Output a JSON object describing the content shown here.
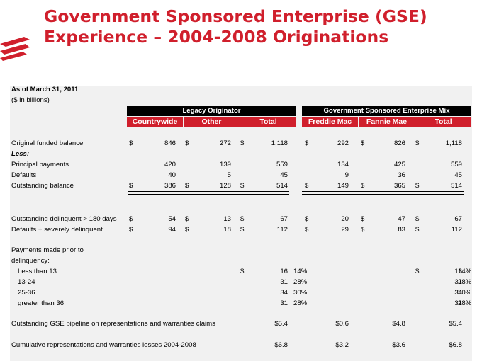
{
  "title": {
    "line1": "Government Sponsored Enterprise (GSE)",
    "line2": "Experience – 2004-2008 Originations"
  },
  "colors": {
    "title": "#d01f2c",
    "header_red": "#d01f2c",
    "panel": "#f1f1f1"
  },
  "logo": "bank-flag-logo",
  "meta": {
    "as_of": "As of March 31, 2011",
    "units": "($ in billions)"
  },
  "groups": {
    "legacy": "Legacy Originator",
    "gse": "Government Sponsored Enterprise Mix"
  },
  "columns": {
    "countrywide": "Countrywide",
    "other": "Other",
    "total1": "Total",
    "freddie": "Freddie Mac",
    "fannie": "Fannie Mae",
    "total2": "Total"
  },
  "rows": {
    "orig": {
      "label": "Original funded balance",
      "countrywide": "846",
      "other": "272",
      "total1": "1,118",
      "freddie": "292",
      "fannie": "826",
      "total2": "1,118"
    },
    "less": {
      "label": "Less:"
    },
    "principal": {
      "label": "Principal payments",
      "countrywide": "420",
      "other": "139",
      "total1": "559",
      "freddie": "134",
      "fannie": "425",
      "total2": "559"
    },
    "defaults": {
      "label": "Defaults",
      "countrywide": "40",
      "other": "5",
      "total1": "45",
      "freddie": "9",
      "fannie": "36",
      "total2": "45"
    },
    "outstanding": {
      "label": "Outstanding balance",
      "countrywide": "386",
      "other": "128",
      "total1": "514",
      "freddie": "149",
      "fannie": "365",
      "total2": "514"
    },
    "delinq": {
      "label": "Outstanding delinquent > 180 days",
      "countrywide": "54",
      "other": "13",
      "total1": "67",
      "freddie": "20",
      "fannie": "47",
      "total2": "67"
    },
    "severe": {
      "label": "Defaults + severely delinquent",
      "countrywide": "94",
      "other": "18",
      "total1": "112",
      "freddie": "29",
      "fannie": "83",
      "total2": "112"
    },
    "payments_label": {
      "line1": "Payments made prior to",
      "line2": "delinquency:"
    },
    "lt13": {
      "label": "Less than 13",
      "total1": "16",
      "pct1": "14%",
      "total2": "16",
      "pct2": "14%"
    },
    "r1324": {
      "label": "13-24",
      "total1": "31",
      "pct1": "28%",
      "total2": "31",
      "pct2": "28%"
    },
    "r2536": {
      "label": "25-36",
      "total1": "34",
      "pct1": "30%",
      "total2": "34",
      "pct2": "30%"
    },
    "gt36": {
      "label": "greater than 36",
      "total1": "31",
      "pct1": "28%",
      "total2": "31",
      "pct2": "28%"
    },
    "pipeline": {
      "label": "Outstanding GSE pipeline on representations and warranties claims",
      "total1": "$5.4",
      "freddie": "$0.6",
      "fannie": "$4.8",
      "total2": "$5.4"
    },
    "cumulative": {
      "label": "Cumulative representations and warranties losses 2004-2008",
      "total1": "$6.8",
      "freddie": "$3.2",
      "fannie": "$3.6",
      "total2": "$6.8"
    }
  },
  "symbols": {
    "dollar": "$"
  }
}
